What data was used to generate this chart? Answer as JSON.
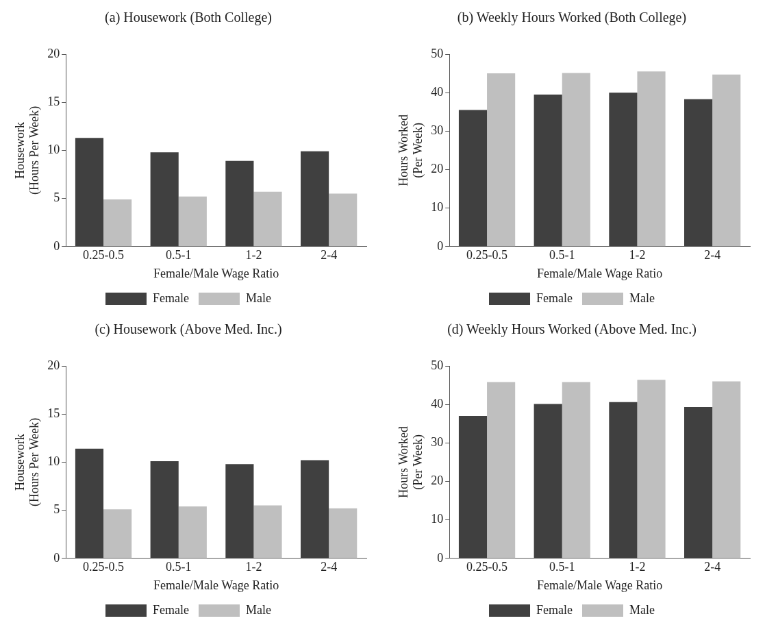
{
  "chart_data": [
    {
      "type": "bar",
      "title": "(a) Housework (Both College)",
      "xlabel": "Female/Male Wage Ratio",
      "ylabel": "Housework\n(Hours Per Week)",
      "categories": [
        "0.25-0.5",
        "0.5-1",
        "1-2",
        "2-4"
      ],
      "ylim": [
        0,
        20
      ],
      "yticks": [
        0,
        5,
        10,
        15,
        20
      ],
      "grid": false,
      "legend": "bottom",
      "series": [
        {
          "name": "Female",
          "color": "#404040",
          "values": [
            11.3,
            9.8,
            8.9,
            9.9
          ]
        },
        {
          "name": "Male",
          "color": "#bfbfbf",
          "values": [
            4.9,
            5.2,
            5.7,
            5.5
          ]
        }
      ]
    },
    {
      "type": "bar",
      "title": "(b) Weekly Hours Worked (Both College)",
      "xlabel": "Female/Male Wage Ratio",
      "ylabel": "Hours Worked\n(Per Week)",
      "categories": [
        "0.25-0.5",
        "0.5-1",
        "1-2",
        "2-4"
      ],
      "ylim": [
        0,
        50
      ],
      "yticks": [
        0,
        10,
        20,
        30,
        40,
        50
      ],
      "grid": false,
      "legend": "bottom",
      "series": [
        {
          "name": "Female",
          "color": "#404040",
          "values": [
            35.5,
            39.5,
            40,
            38.3
          ]
        },
        {
          "name": "Male",
          "color": "#bfbfbf",
          "values": [
            45,
            45.1,
            45.5,
            44.7
          ]
        }
      ]
    },
    {
      "type": "bar",
      "title": "(c) Housework (Above Med. Inc.)",
      "xlabel": "Female/Male Wage Ratio",
      "ylabel": "Housework\n(Hours Per Week)",
      "categories": [
        "0.25-0.5",
        "0.5-1",
        "1-2",
        "2-4"
      ],
      "ylim": [
        0,
        20
      ],
      "yticks": [
        0,
        5,
        10,
        15,
        20
      ],
      "grid": false,
      "legend": "bottom",
      "series": [
        {
          "name": "Female",
          "color": "#404040",
          "values": [
            11.4,
            10.1,
            9.8,
            10.2
          ]
        },
        {
          "name": "Male",
          "color": "#bfbfbf",
          "values": [
            5.1,
            5.4,
            5.5,
            5.2
          ]
        }
      ]
    },
    {
      "type": "bar",
      "title": "(d) Weekly Hours Worked (Above Med. Inc.)",
      "xlabel": "Female/Male Wage Ratio",
      "ylabel": "Hours Worked\n(Per Week)",
      "categories": [
        "0.25-0.5",
        "0.5-1",
        "1-2",
        "2-4"
      ],
      "ylim": [
        0,
        50
      ],
      "yticks": [
        0,
        10,
        20,
        30,
        40,
        50
      ],
      "grid": false,
      "legend": "bottom",
      "series": [
        {
          "name": "Female",
          "color": "#404040",
          "values": [
            37,
            40.1,
            40.6,
            39.3
          ]
        },
        {
          "name": "Male",
          "color": "#bfbfbf",
          "values": [
            45.8,
            45.8,
            46.4,
            46
          ]
        }
      ]
    }
  ]
}
